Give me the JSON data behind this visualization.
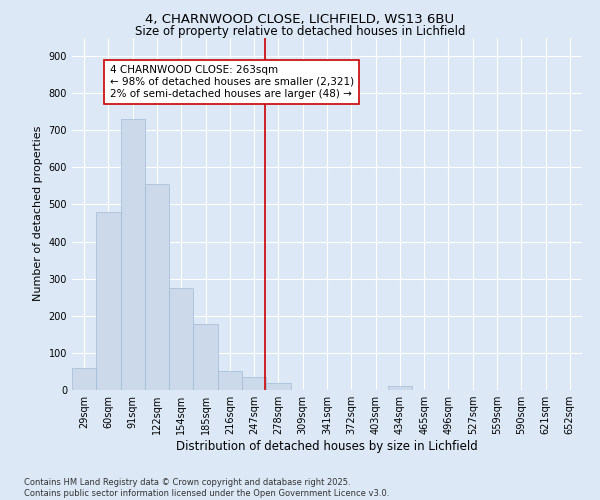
{
  "title": "4, CHARNWOOD CLOSE, LICHFIELD, WS13 6BU",
  "subtitle": "Size of property relative to detached houses in Lichfield",
  "xlabel": "Distribution of detached houses by size in Lichfield",
  "ylabel": "Number of detached properties",
  "footnote": "Contains HM Land Registry data © Crown copyright and database right 2025.\nContains public sector information licensed under the Open Government Licence v3.0.",
  "bar_width": 1.0,
  "bar_color": "#ccd9ea",
  "bar_edgecolor": "#a0bcd8",
  "background_color": "#dce8f5",
  "grid_color": "#ffffff",
  "categories": [
    "29sqm",
    "60sqm",
    "91sqm",
    "122sqm",
    "154sqm",
    "185sqm",
    "216sqm",
    "247sqm",
    "278sqm",
    "309sqm",
    "341sqm",
    "372sqm",
    "403sqm",
    "434sqm",
    "465sqm",
    "496sqm",
    "527sqm",
    "559sqm",
    "590sqm",
    "621sqm",
    "652sqm"
  ],
  "values": [
    58,
    480,
    730,
    555,
    275,
    178,
    50,
    35,
    18,
    0,
    0,
    0,
    0,
    12,
    0,
    0,
    0,
    0,
    0,
    0,
    0
  ],
  "ylim": [
    0,
    950
  ],
  "yticks": [
    0,
    100,
    200,
    300,
    400,
    500,
    600,
    700,
    800,
    900
  ],
  "vline_x": 7.45,
  "vline_color": "#cc0000",
  "annotation_text": "4 CHARNWOOD CLOSE: 263sqm\n← 98% of detached houses are smaller (2,321)\n2% of semi-detached houses are larger (48) →",
  "annotation_box_color": "#ffffff",
  "annotation_edgecolor": "#cc0000",
  "title_fontsize": 9.5,
  "subtitle_fontsize": 8.5,
  "xlabel_fontsize": 8.5,
  "ylabel_fontsize": 8.0,
  "tick_fontsize": 7.0,
  "annotation_fontsize": 7.5,
  "footnote_fontsize": 6.0
}
